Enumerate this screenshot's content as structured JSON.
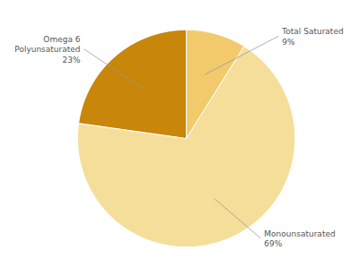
{
  "chart_data": {
    "type": "pie",
    "categories": [
      "Total Saturated",
      "Monounsaturated",
      "Omega 6\nPolyunsaturated"
    ],
    "values": [
      9,
      69,
      23
    ],
    "value_labels": [
      "9%",
      "69%",
      "23%"
    ],
    "colors": [
      "#F2CA6B",
      "#F5DE9A",
      "#C8860A"
    ],
    "data_labels": true
  }
}
